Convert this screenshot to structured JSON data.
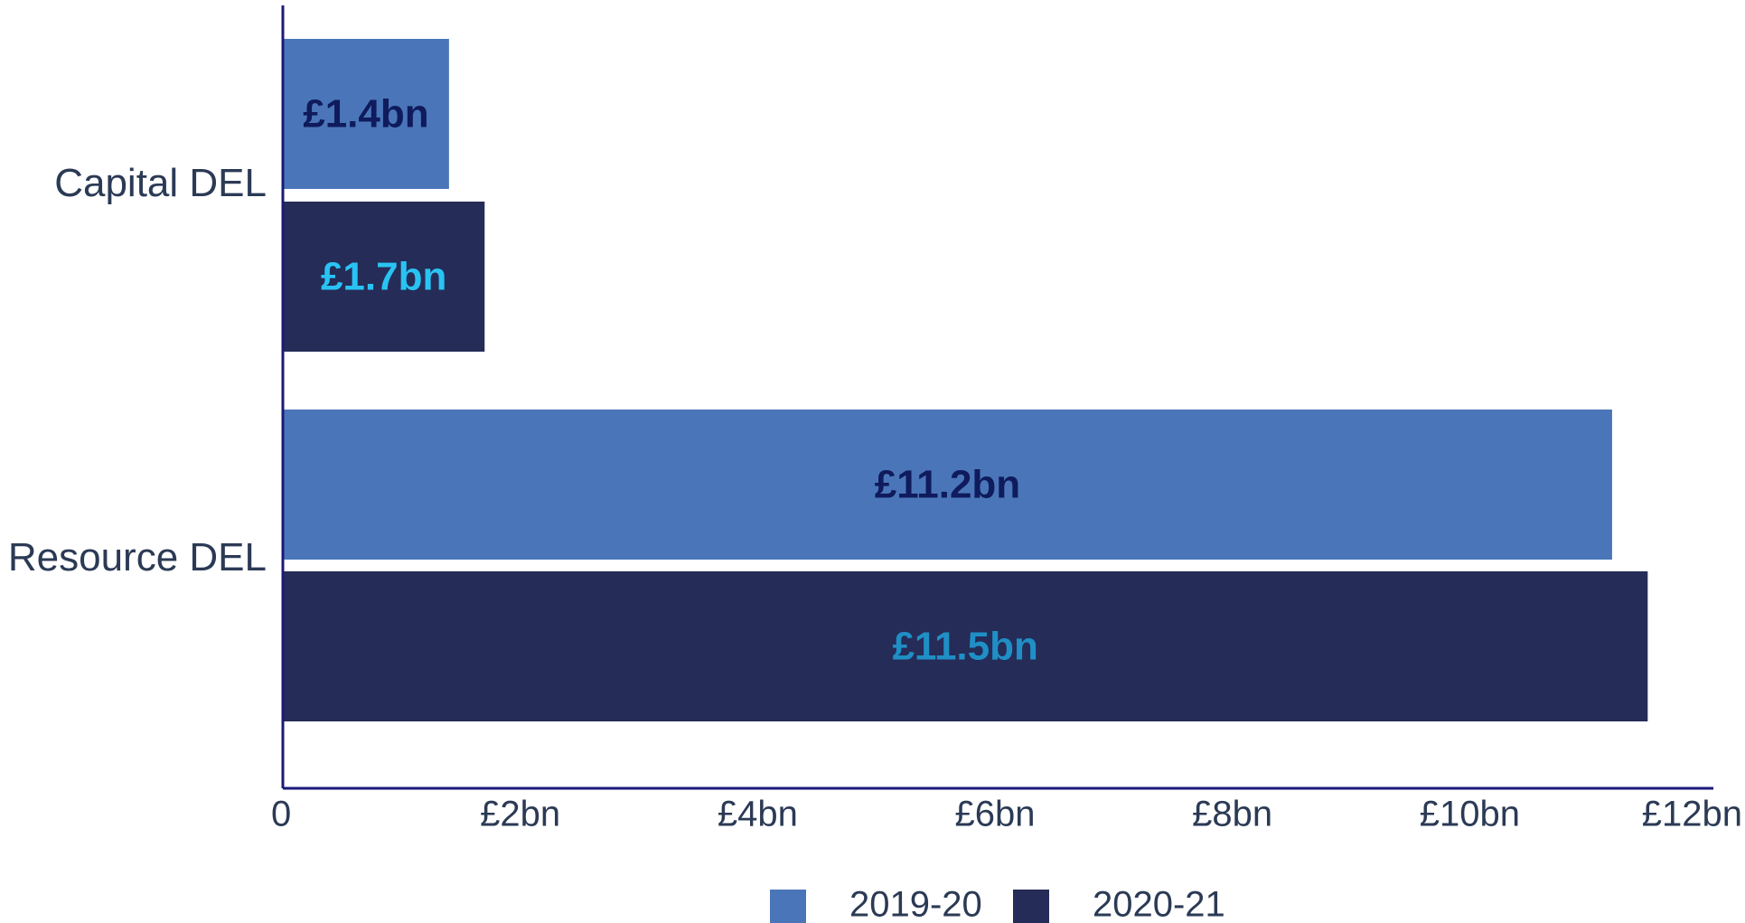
{
  "chart_data": {
    "type": "bar",
    "orientation": "horizontal",
    "categories": [
      "Capital DEL",
      "Resource DEL"
    ],
    "series": [
      {
        "name": "2019-20",
        "values": [
          1.4,
          11.2
        ],
        "labels": [
          "£1.4bn",
          "£11.2bn"
        ],
        "color": "#4a76b9",
        "label_color": "#0f1b5c"
      },
      {
        "name": "2020-21",
        "values": [
          1.7,
          11.5
        ],
        "labels": [
          "£1.7bn",
          "£11.5bn"
        ],
        "color": "#252c57",
        "label_colors": [
          "#29c3f3",
          "#1f8fc6"
        ]
      }
    ],
    "xlim": [
      0,
      12
    ],
    "x_ticks": [
      {
        "value": 0,
        "label": "0"
      },
      {
        "value": 2,
        "label": "£2bn"
      },
      {
        "value": 4,
        "label": "£4bn"
      },
      {
        "value": 6,
        "label": "£6bn"
      },
      {
        "value": 8,
        "label": "£8bn"
      },
      {
        "value": 10,
        "label": "£10bn"
      },
      {
        "value": 12,
        "label": "£12bn"
      }
    ],
    "title": "",
    "xlabel": "",
    "ylabel": "",
    "grid": false,
    "legend_position": "bottom-center",
    "axis_color": "#1a1a7a"
  }
}
